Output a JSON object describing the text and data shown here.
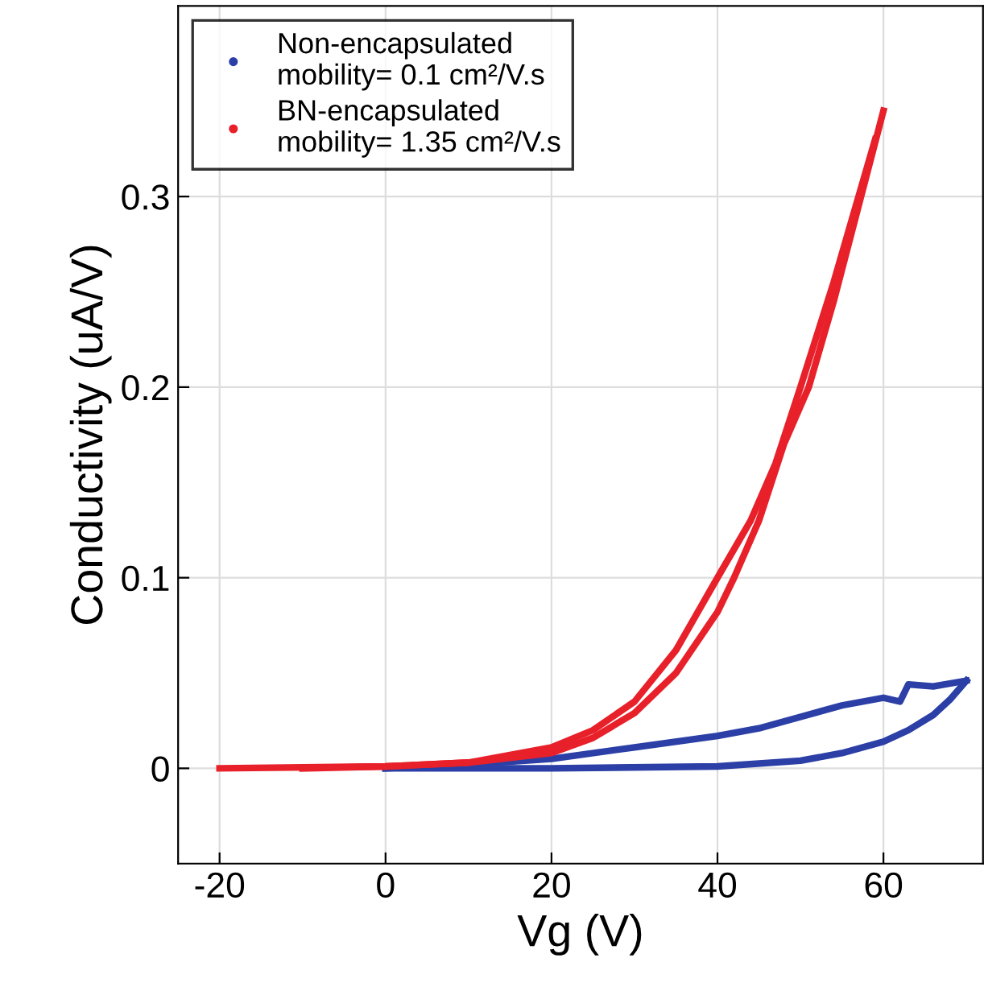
{
  "chart_data": {
    "type": "line",
    "xlabel": "Vg (V)",
    "ylabel": "Conductivity (uA/V)",
    "xlim": [
      -25,
      72
    ],
    "xticks": [
      -20,
      0,
      20,
      40,
      60
    ],
    "ylim": [
      -0.05,
      0.4
    ],
    "yticks": [
      0,
      0.1,
      0.2,
      0.3
    ],
    "grid": true,
    "legend": "top left",
    "series": [
      {
        "name": "Non-encapsulated\nmobility= 0.1 cm²/V.s",
        "color": "#2b3fa6",
        "x": [
          0,
          20,
          40,
          50,
          55,
          60,
          63,
          66,
          68,
          70
        ],
        "values": [
          0,
          0,
          0.001,
          0.004,
          0.008,
          0.014,
          0.02,
          0.028,
          0.036,
          0.046
        ]
      },
      {
        "color": "#2b3fa6",
        "x": [
          0,
          10,
          20,
          30,
          40,
          45,
          50,
          55,
          60,
          62,
          63,
          66,
          70
        ],
        "values": [
          0,
          0.002,
          0.005,
          0.011,
          0.017,
          0.021,
          0.027,
          0.033,
          0.037,
          0.035,
          0.044,
          0.043,
          0.046
        ]
      },
      {
        "name": "BN-encapsulated\nmobility= 1.35 cm²/V.s",
        "color": "#e8202a",
        "x": [
          -20,
          0,
          10,
          20,
          25,
          30,
          35,
          40,
          42,
          45,
          48,
          51,
          54,
          57,
          60
        ],
        "values": [
          0,
          0.001,
          0.003,
          0.008,
          0.016,
          0.029,
          0.05,
          0.082,
          0.1,
          0.13,
          0.17,
          0.2,
          0.245,
          0.295,
          0.345
        ]
      },
      {
        "color": "#e8202a",
        "x": [
          -10,
          0,
          10,
          20,
          25,
          30,
          35,
          40,
          44,
          47,
          50,
          54,
          57,
          59
        ],
        "values": [
          0,
          0.001,
          0.003,
          0.011,
          0.02,
          0.035,
          0.062,
          0.1,
          0.13,
          0.16,
          0.2,
          0.255,
          0.3,
          0.33
        ]
      }
    ]
  }
}
